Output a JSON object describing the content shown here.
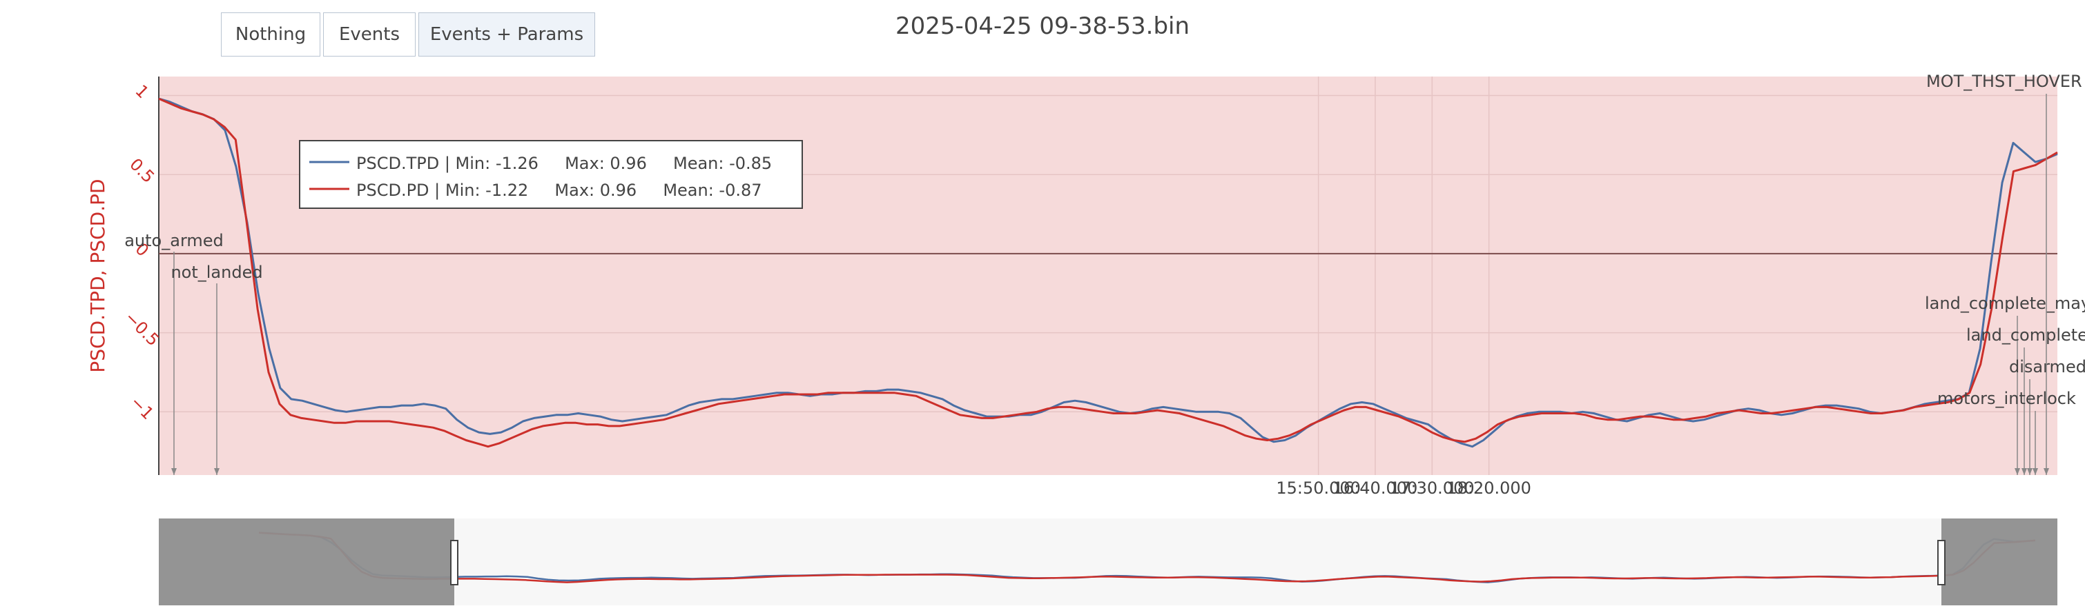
{
  "toolbar": {
    "buttons": [
      {
        "label": "Nothing"
      },
      {
        "label": "Events"
      },
      {
        "label": "Events + Params"
      }
    ]
  },
  "title": "2025-04-25 09-38-53.bin",
  "colors": {
    "tpd": "#4a6fa5",
    "pd": "#cc2f2a",
    "plot_bg": "#f6dada",
    "ylabel": "#cc2f2a"
  },
  "chart_data": {
    "type": "line",
    "ylabel": "PSCD.TPD, PSCD.PD",
    "x_unit": "seconds (mm:ss.sss)",
    "xlim": [
      4.8,
      21.5
    ],
    "ylim": [
      -1.4,
      1.12
    ],
    "x_ticks": [
      {
        "value": 15.0,
        "label": "15:50.000"
      },
      {
        "value": 15.5,
        "label": "16:40.000"
      },
      {
        "value": 16.0,
        "label": "17:30.000"
      },
      {
        "value": 16.5,
        "label": "18:20.000"
      }
    ],
    "y_ticks": [
      {
        "value": 1,
        "label": "1"
      },
      {
        "value": 0.5,
        "label": "0.5"
      },
      {
        "value": 0,
        "label": "0"
      },
      {
        "value": -0.5,
        "label": "−0.5"
      },
      {
        "value": -1,
        "label": "−1"
      }
    ],
    "legend": [
      {
        "name": "PSCD.TPD",
        "text": "PSCD.TPD | Min: -1.26     Max: 0.96     Mean: -0.85"
      },
      {
        "name": "PSCD.PD",
        "text": "PSCD.PD | Min: -1.22     Max: 0.96     Mean: -0.87"
      }
    ],
    "events": [
      {
        "label": "auto_armed"
      },
      {
        "label": "not_landed"
      },
      {
        "label": "land_complete_maybe"
      },
      {
        "label": "land_complete"
      },
      {
        "label": "disarmed"
      },
      {
        "label": "motors_interlock"
      },
      {
        "label": "MOT_THST_HOVER"
      }
    ],
    "series": [
      {
        "name": "PSCD.TPD",
        "color": "#4a6fa5",
        "values": [
          0.98,
          0.96,
          0.93,
          0.9,
          0.88,
          0.85,
          0.78,
          0.55,
          0.2,
          -0.25,
          -0.6,
          -0.85,
          -0.92,
          -0.93,
          -0.95,
          -0.97,
          -0.99,
          -1.0,
          -0.99,
          -0.98,
          -0.97,
          -0.97,
          -0.96,
          -0.96,
          -0.95,
          -0.96,
          -0.98,
          -1.05,
          -1.1,
          -1.13,
          -1.14,
          -1.13,
          -1.1,
          -1.06,
          -1.04,
          -1.03,
          -1.02,
          -1.02,
          -1.01,
          -1.02,
          -1.03,
          -1.05,
          -1.06,
          -1.05,
          -1.04,
          -1.03,
          -1.02,
          -0.99,
          -0.96,
          -0.94,
          -0.93,
          -0.92,
          -0.92,
          -0.91,
          -0.9,
          -0.89,
          -0.88,
          -0.88,
          -0.89,
          -0.9,
          -0.89,
          -0.89,
          -0.88,
          -0.88,
          -0.87,
          -0.87,
          -0.86,
          -0.86,
          -0.87,
          -0.88,
          -0.9,
          -0.92,
          -0.96,
          -0.99,
          -1.01,
          -1.03,
          -1.03,
          -1.03,
          -1.02,
          -1.02,
          -1.0,
          -0.97,
          -0.94,
          -0.93,
          -0.94,
          -0.96,
          -0.98,
          -1.0,
          -1.01,
          -1.0,
          -0.98,
          -0.97,
          -0.98,
          -0.99,
          -1.0,
          -1.0,
          -1.0,
          -1.01,
          -1.04,
          -1.1,
          -1.16,
          -1.19,
          -1.18,
          -1.15,
          -1.1,
          -1.06,
          -1.02,
          -0.98,
          -0.95,
          -0.94,
          -0.95,
          -0.98,
          -1.01,
          -1.04,
          -1.06,
          -1.08,
          -1.13,
          -1.17,
          -1.2,
          -1.22,
          -1.18,
          -1.12,
          -1.06,
          -1.03,
          -1.01,
          -1.0,
          -1.0,
          -1.0,
          -1.01,
          -1.0,
          -1.01,
          -1.03,
          -1.05,
          -1.06,
          -1.04,
          -1.02,
          -1.01,
          -1.03,
          -1.05,
          -1.06,
          -1.05,
          -1.03,
          -1.01,
          -0.99,
          -0.98,
          -0.99,
          -1.01,
          -1.02,
          -1.01,
          -0.99,
          -0.97,
          -0.96,
          -0.96,
          -0.97,
          -0.98,
          -1.0,
          -1.01,
          -1.0,
          -0.99,
          -0.97,
          -0.95,
          -0.94,
          -0.93,
          -0.92,
          -0.88,
          -0.6,
          -0.05,
          0.45,
          0.7,
          0.64,
          0.58,
          0.6,
          0.63
        ]
      },
      {
        "name": "PSCD.PD",
        "color": "#cc2f2a",
        "values": [
          0.98,
          0.95,
          0.92,
          0.9,
          0.88,
          0.85,
          0.8,
          0.72,
          0.2,
          -0.35,
          -0.75,
          -0.95,
          -1.02,
          -1.04,
          -1.05,
          -1.06,
          -1.07,
          -1.07,
          -1.06,
          -1.06,
          -1.06,
          -1.06,
          -1.07,
          -1.08,
          -1.09,
          -1.1,
          -1.12,
          -1.15,
          -1.18,
          -1.2,
          -1.22,
          -1.2,
          -1.17,
          -1.14,
          -1.11,
          -1.09,
          -1.08,
          -1.07,
          -1.07,
          -1.08,
          -1.08,
          -1.09,
          -1.09,
          -1.08,
          -1.07,
          -1.06,
          -1.05,
          -1.03,
          -1.01,
          -0.99,
          -0.97,
          -0.95,
          -0.94,
          -0.93,
          -0.92,
          -0.91,
          -0.9,
          -0.89,
          -0.89,
          -0.89,
          -0.89,
          -0.88,
          -0.88,
          -0.88,
          -0.88,
          -0.88,
          -0.88,
          -0.88,
          -0.89,
          -0.9,
          -0.93,
          -0.96,
          -0.99,
          -1.02,
          -1.03,
          -1.04,
          -1.04,
          -1.03,
          -1.02,
          -1.01,
          -1.0,
          -0.98,
          -0.97,
          -0.97,
          -0.98,
          -0.99,
          -1.0,
          -1.01,
          -1.01,
          -1.01,
          -1.0,
          -0.99,
          -1.0,
          -1.01,
          -1.03,
          -1.05,
          -1.07,
          -1.09,
          -1.12,
          -1.15,
          -1.17,
          -1.18,
          -1.17,
          -1.15,
          -1.12,
          -1.08,
          -1.05,
          -1.02,
          -0.99,
          -0.97,
          -0.97,
          -0.99,
          -1.01,
          -1.03,
          -1.06,
          -1.09,
          -1.13,
          -1.16,
          -1.18,
          -1.19,
          -1.17,
          -1.13,
          -1.08,
          -1.05,
          -1.03,
          -1.02,
          -1.01,
          -1.01,
          -1.01,
          -1.01,
          -1.02,
          -1.04,
          -1.05,
          -1.05,
          -1.04,
          -1.03,
          -1.03,
          -1.04,
          -1.05,
          -1.05,
          -1.04,
          -1.03,
          -1.01,
          -1.0,
          -0.99,
          -1.0,
          -1.01,
          -1.01,
          -1.0,
          -0.99,
          -0.98,
          -0.97,
          -0.97,
          -0.98,
          -0.99,
          -1.0,
          -1.01,
          -1.01,
          -1.0,
          -0.99,
          -0.97,
          -0.96,
          -0.95,
          -0.94,
          -0.92,
          -0.88,
          -0.7,
          -0.35,
          0.1,
          0.52,
          0.54,
          0.56,
          0.6,
          0.64
        ]
      }
    ]
  }
}
